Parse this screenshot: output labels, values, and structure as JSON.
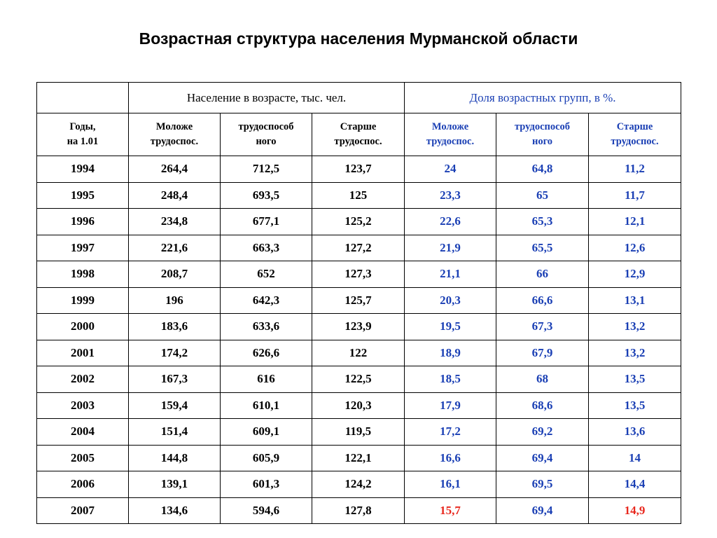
{
  "title": "Возрастная структура населения Мурманской области",
  "colors": {
    "text": "#000000",
    "share_text": "#1a3fb4",
    "highlight": "#e8281e"
  },
  "header": {
    "group_population": "Население в возрасте, тыс. чел.",
    "group_share": "Доля возрастных групп, в %.",
    "year_col": [
      "Годы,",
      "на 1.01"
    ],
    "pop_cols": [
      [
        "Моложе",
        "трудоспос."
      ],
      [
        "трудоспособ",
        "ного"
      ],
      [
        "Старше",
        "трудоспос."
      ]
    ],
    "share_cols": [
      [
        "Моложе",
        "трудоспос."
      ],
      [
        "трудоспособ",
        "ного"
      ],
      [
        "Старше",
        "трудоспос."
      ]
    ]
  },
  "rows": [
    {
      "year": "1994",
      "pop": [
        "264,4",
        "712,5",
        "123,7"
      ],
      "share": [
        "24",
        "64,8",
        "11,2"
      ]
    },
    {
      "year": "1995",
      "pop": [
        "248,4",
        "693,5",
        "125"
      ],
      "share": [
        "23,3",
        "65",
        "11,7"
      ]
    },
    {
      "year": "1996",
      "pop": [
        "234,8",
        "677,1",
        "125,2"
      ],
      "share": [
        "22,6",
        "65,3",
        "12,1"
      ]
    },
    {
      "year": "1997",
      "pop": [
        "221,6",
        "663,3",
        "127,2"
      ],
      "share": [
        "21,9",
        "65,5",
        "12,6"
      ]
    },
    {
      "year": "1998",
      "pop": [
        "208,7",
        "652",
        "127,3"
      ],
      "share": [
        "21,1",
        "66",
        "12,9"
      ]
    },
    {
      "year": "1999",
      "pop": [
        "196",
        "642,3",
        "125,7"
      ],
      "share": [
        "20,3",
        "66,6",
        "13,1"
      ]
    },
    {
      "year": "2000",
      "pop": [
        "183,6",
        "633,6",
        "123,9"
      ],
      "share": [
        "19,5",
        "67,3",
        "13,2"
      ]
    },
    {
      "year": "2001",
      "pop": [
        "174,2",
        "626,6",
        "122"
      ],
      "share": [
        "18,9",
        "67,9",
        "13,2"
      ]
    },
    {
      "year": "2002",
      "pop": [
        "167,3",
        "616",
        "122,5"
      ],
      "share": [
        "18,5",
        "68",
        "13,5"
      ]
    },
    {
      "year": "2003",
      "pop": [
        "159,4",
        "610,1",
        "120,3"
      ],
      "share": [
        "17,9",
        "68,6",
        "13,5"
      ]
    },
    {
      "year": "2004",
      "pop": [
        "151,4",
        "609,1",
        "119,5"
      ],
      "share": [
        "17,2",
        "69,2",
        "13,6"
      ]
    },
    {
      "year": "2005",
      "pop": [
        "144,8",
        "605,9",
        "122,1"
      ],
      "share": [
        "16,6",
        "69,4",
        "14"
      ]
    },
    {
      "year": "2006",
      "pop": [
        "139,1",
        "601,3",
        "124,2"
      ],
      "share": [
        "16,1",
        "69,5",
        "14,4"
      ]
    },
    {
      "year": "2007",
      "pop": [
        "134,6",
        "594,6",
        "127,8"
      ],
      "share": [
        "15,7",
        "69,4",
        "14,9"
      ],
      "highlight_share": [
        0,
        2
      ]
    }
  ]
}
